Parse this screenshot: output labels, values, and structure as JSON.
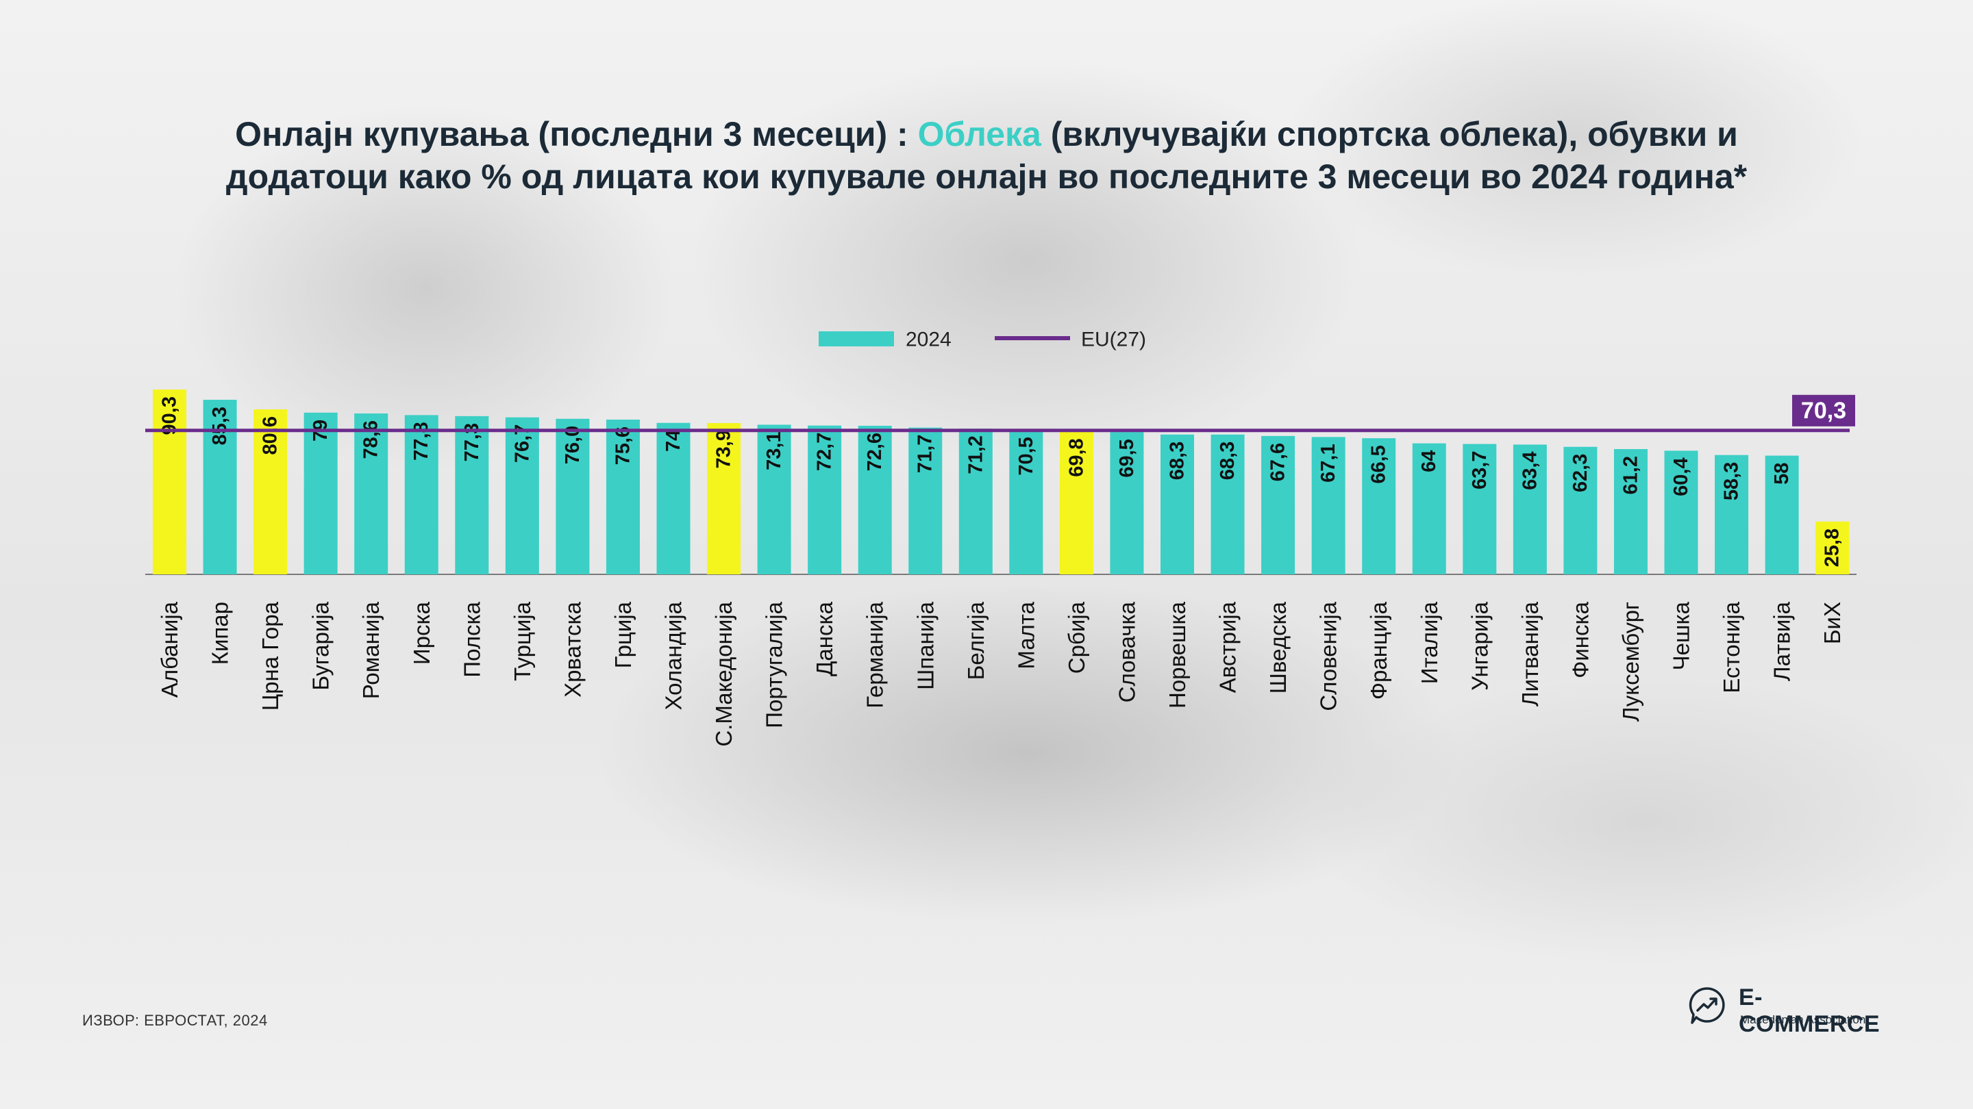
{
  "title": {
    "line1_pre": "Онлајн купувања (последни 3 месеци) : ",
    "line1_highlight": "Облека",
    "line1_post": " (вклучувајќи спортска облека), обувки и",
    "line2": "додатоци како % од лицата кои купувале онлајн во последните 3 месеци во 2024 година*"
  },
  "source": "ИЗВОР: ЕВРОСТАТ, 2024",
  "logo": {
    "name": "E-COMMERCE",
    "tagline": "Macedonian Association",
    "icon": "trend-arrow-speech-bubble-icon"
  },
  "colors": {
    "bar": "#3ccfc6",
    "highlight": "#f4f51d",
    "eu_line": "#6a2c8c",
    "text": "#1b2a36"
  },
  "chart_data": {
    "type": "bar",
    "legend": {
      "placement": "top-center",
      "bar_label": "2024",
      "line_label": "EU(27)"
    },
    "categories": [
      "Албанија",
      "Кипар",
      "Црна Гора",
      "Бугарија",
      "Романија",
      "Ирска",
      "Полска",
      "Турција",
      "Хрватска",
      "Грција",
      "Холандија",
      "С.Македонија",
      "Португалија",
      "Данска",
      "Германија",
      "Шпанија",
      "Белгија",
      "Малта",
      "Србија",
      "Словачка",
      "Норвешка",
      "Австрија",
      "Шведска",
      "Словенија",
      "Франција",
      "Италија",
      "Унгарија",
      "Литванија",
      "Финска",
      "Луксембург",
      "Чешка",
      "Естонија",
      "Латвија",
      "БиХ"
    ],
    "values": [
      90.3,
      85.3,
      80.6,
      79,
      78.6,
      77.8,
      77.3,
      76.7,
      76.0,
      75.6,
      74,
      73.9,
      73.1,
      72.7,
      72.6,
      71.7,
      71.2,
      70.5,
      69.8,
      69.5,
      68.3,
      68.3,
      67.6,
      67.1,
      66.5,
      64,
      63.7,
      63.4,
      62.3,
      61.2,
      60.4,
      58.3,
      58,
      25.8
    ],
    "labels": [
      "90,3",
      "85,3",
      "80,6",
      "79",
      "78,6",
      "77,8",
      "77,3",
      "76,7",
      "76,0",
      "75,6",
      "74",
      "73,9",
      "73,1",
      "72,7",
      "72,6",
      "71,7",
      "71,2",
      "70,5",
      "69,8",
      "69,5",
      "68,3",
      "68,3",
      "67,6",
      "67,1",
      "66,5",
      "64",
      "63,7",
      "63,4",
      "62,3",
      "61,2",
      "60,4",
      "58,3",
      "58",
      "25,8"
    ],
    "highlighted": [
      "Албанија",
      "Црна Гора",
      "С.Македонија",
      "Србија",
      "БиХ"
    ],
    "reference_line": {
      "name": "EU(27)",
      "value": 70.3,
      "label": "70,3"
    },
    "ylim": [
      0,
      90.3
    ]
  }
}
